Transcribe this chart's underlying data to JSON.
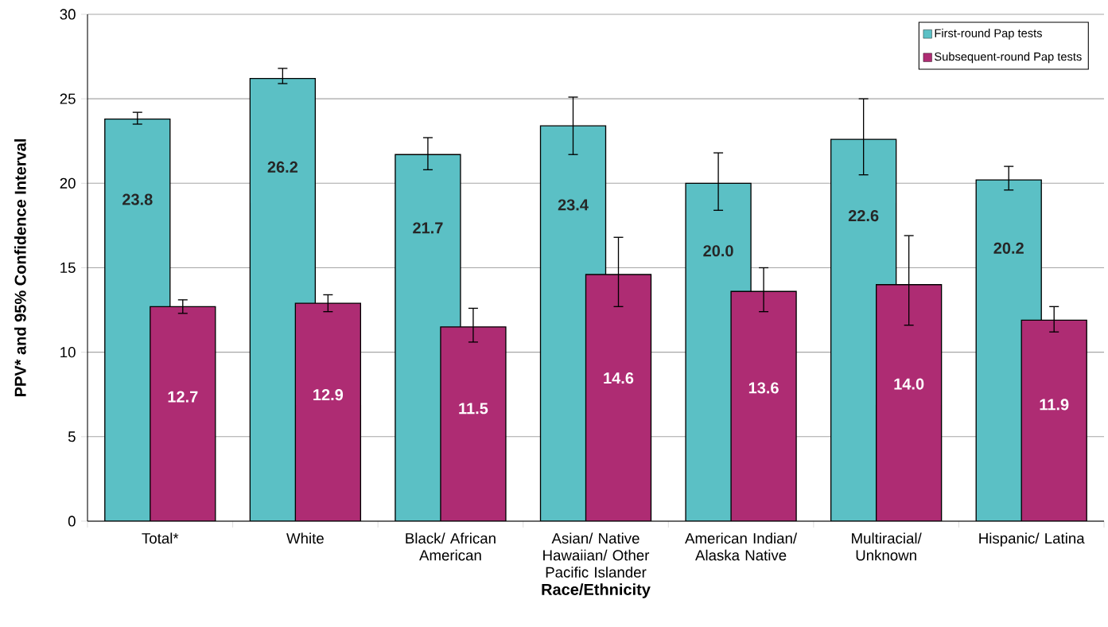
{
  "chart_data": {
    "type": "bar",
    "xlabel": "Race/Ethnicity",
    "ylabel": "PPV* and 95% Confidence Interval",
    "categories": [
      "Total*",
      "White",
      "Black/ African American",
      "Asian/ Native Hawaiian/ Other Pacific Islander",
      "American Indian/ Alaska Native",
      "Multiracial/ Unknown",
      "Hispanic/ Latina"
    ],
    "series": [
      {
        "name": "First-round Pap tests",
        "color": "#5bc0c5",
        "values": [
          23.8,
          26.2,
          21.7,
          23.4,
          20.0,
          22.6,
          20.2
        ],
        "value_labels": [
          "23.8",
          "26.2",
          "21.7",
          "23.4",
          "20.0",
          "22.6",
          "20.2"
        ],
        "errors": [
          [
            23.5,
            24.2
          ],
          [
            25.9,
            26.8
          ],
          [
            20.8,
            22.7
          ],
          [
            21.7,
            25.1
          ],
          [
            18.4,
            21.8
          ],
          [
            20.5,
            25.0
          ],
          [
            19.6,
            21.0
          ]
        ]
      },
      {
        "name": "Subsequent-round Pap tests",
        "color": "#ae2c73",
        "values": [
          12.7,
          12.9,
          11.5,
          14.6,
          13.6,
          14.0,
          11.9
        ],
        "value_labels": [
          "12.7",
          "12.9",
          "11.5",
          "14.6",
          "13.6",
          "14.0",
          "11.9"
        ],
        "errors": [
          [
            12.3,
            13.1
          ],
          [
            12.4,
            13.4
          ],
          [
            10.6,
            12.6
          ],
          [
            12.7,
            16.8
          ],
          [
            12.4,
            15.0
          ],
          [
            11.6,
            16.9
          ],
          [
            11.2,
            12.7
          ]
        ]
      }
    ],
    "ylim": [
      0,
      30
    ],
    "yticks": [
      0,
      5,
      10,
      15,
      20,
      25,
      30
    ],
    "grid": "y",
    "legend": "top right"
  }
}
